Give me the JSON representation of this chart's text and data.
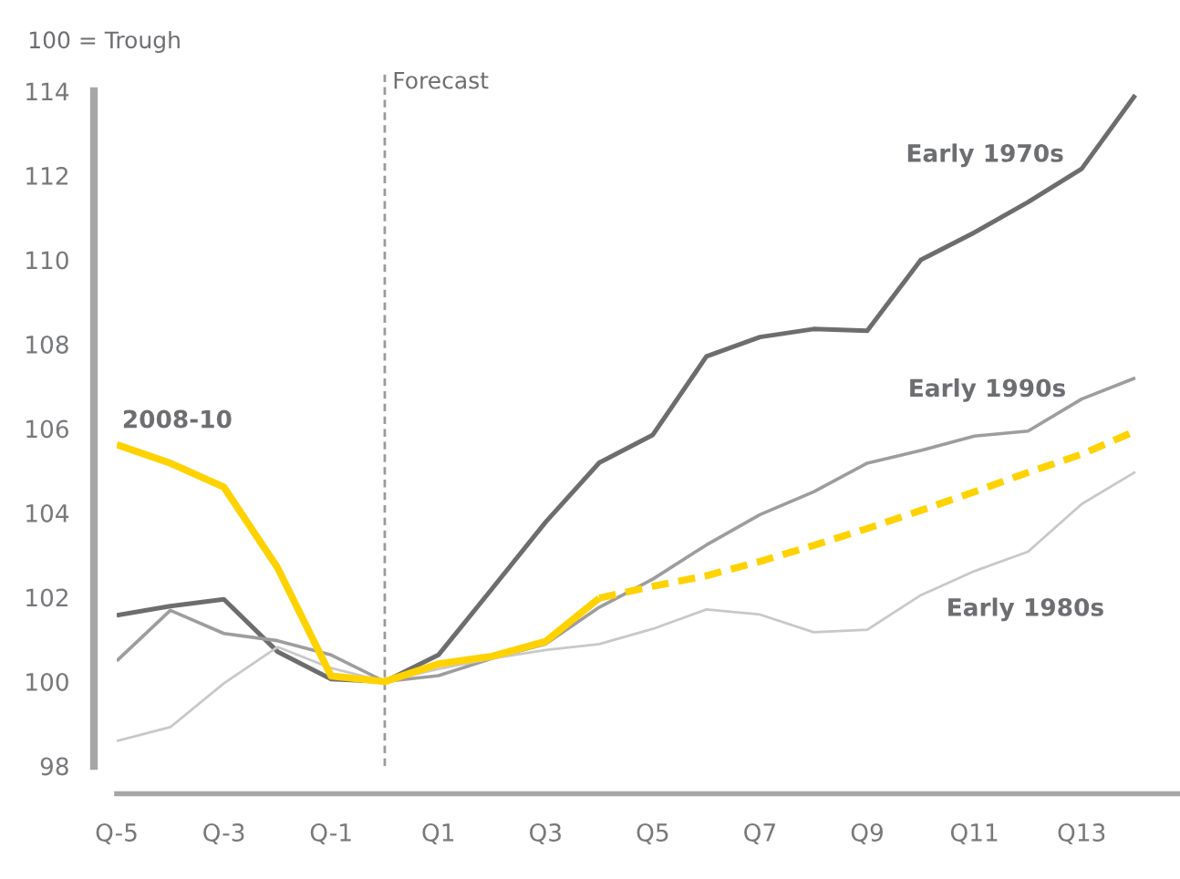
{
  "chart_data": {
    "type": "line",
    "ylabel": "100 = Trough",
    "categories": [
      "Q-5",
      null,
      "Q-3",
      null,
      "Q-1",
      null,
      "Q1",
      null,
      "Q3",
      null,
      "Q5",
      null,
      "Q7",
      null,
      "Q9",
      null,
      "Q11",
      null,
      "Q13",
      null
    ],
    "ylim": [
      98,
      114
    ],
    "yticks": [
      98,
      100,
      102,
      104,
      106,
      108,
      110,
      112,
      114
    ],
    "series": [
      {
        "name": "Early 1970s",
        "color": "#6d6d6d",
        "values": [
          101.57,
          101.79,
          101.95,
          100.71,
          100.06,
          100,
          100.63,
          102.2,
          103.78,
          105.19,
          105.85,
          107.71,
          108.17,
          108.36,
          108.32,
          110.0,
          110.65,
          111.37,
          112.16,
          113.91
        ]
      },
      {
        "name": "Early 1990s",
        "color": "#9d9d9d",
        "values": [
          100.49,
          101.69,
          101.14,
          100.97,
          100.63,
          100,
          100.14,
          100.55,
          100.89,
          101.76,
          102.43,
          103.24,
          103.96,
          104.5,
          105.18,
          105.48,
          105.82,
          105.94,
          106.7,
          107.2
        ]
      },
      {
        "name": "Early 1980s",
        "color": "#c8c8c8",
        "values": [
          98.59,
          98.92,
          99.96,
          100.82,
          100.32,
          100,
          100.3,
          100.55,
          100.75,
          100.89,
          101.25,
          101.71,
          101.59,
          101.17,
          101.23,
          102.05,
          102.62,
          103.08,
          104.21,
          104.97
        ]
      },
      {
        "name": "2008-10",
        "color": "#ffd200",
        "values": [
          105.62,
          105.18,
          104.61,
          102.7,
          100.13,
          100,
          100.42,
          100.6,
          100.95,
          101.98,
          null,
          null,
          null,
          null,
          null,
          null,
          null,
          null,
          null,
          null
        ]
      },
      {
        "color": "#ffd200",
        "line_style": "dashed",
        "values": [
          null,
          null,
          null,
          null,
          null,
          null,
          null,
          null,
          null,
          101.98,
          102.26,
          102.51,
          102.85,
          103.23,
          103.63,
          104.06,
          104.5,
          104.96,
          105.39,
          105.94
        ]
      }
    ],
    "annotations": [
      "Forecast"
    ]
  }
}
